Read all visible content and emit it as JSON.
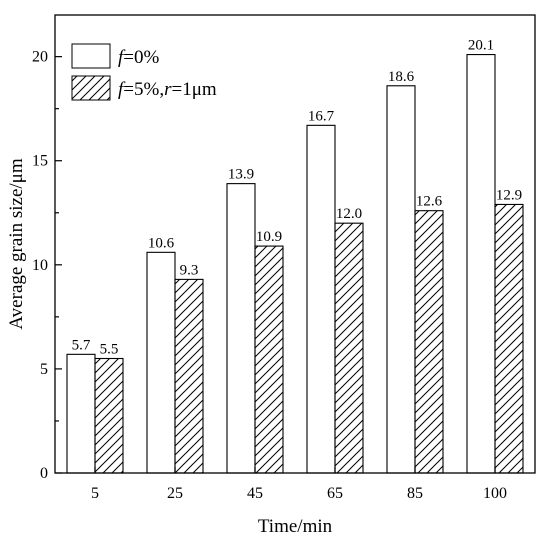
{
  "chart_data": {
    "type": "bar",
    "categories": [
      "5",
      "25",
      "45",
      "65",
      "85",
      "100"
    ],
    "series": [
      {
        "name": "f=0%",
        "pattern": "open",
        "values": [
          5.7,
          10.6,
          13.9,
          16.7,
          18.6,
          20.1
        ]
      },
      {
        "name": "f=5%,r=1μm",
        "pattern": "hatched",
        "values": [
          5.5,
          9.3,
          10.9,
          12.0,
          12.6,
          12.9
        ]
      }
    ],
    "data_labels": [
      [
        "5.7",
        "10.6",
        "13.9",
        "16.7",
        "18.6",
        "20.1"
      ],
      [
        "5.5",
        "9.3",
        "10.9",
        "12.0",
        "12.6",
        "12.9"
      ]
    ],
    "xlabel": "Time/min",
    "ylabel": "Average grain size/μm",
    "ylim": [
      0,
      22
    ],
    "yticks": [
      "0",
      "5",
      "10",
      "15",
      "20"
    ],
    "grid": false,
    "legend_position": "top-left"
  },
  "legend": {
    "s1": {
      "italic": "f",
      "rest": "=0%"
    },
    "s2": {
      "italic1": "f",
      "mid": "=5%,",
      "italic2": "r",
      "rest": "=1μm"
    }
  },
  "colors": {
    "axis": "#000000",
    "bar_fill": "#ffffff",
    "hatch": "#000000"
  }
}
